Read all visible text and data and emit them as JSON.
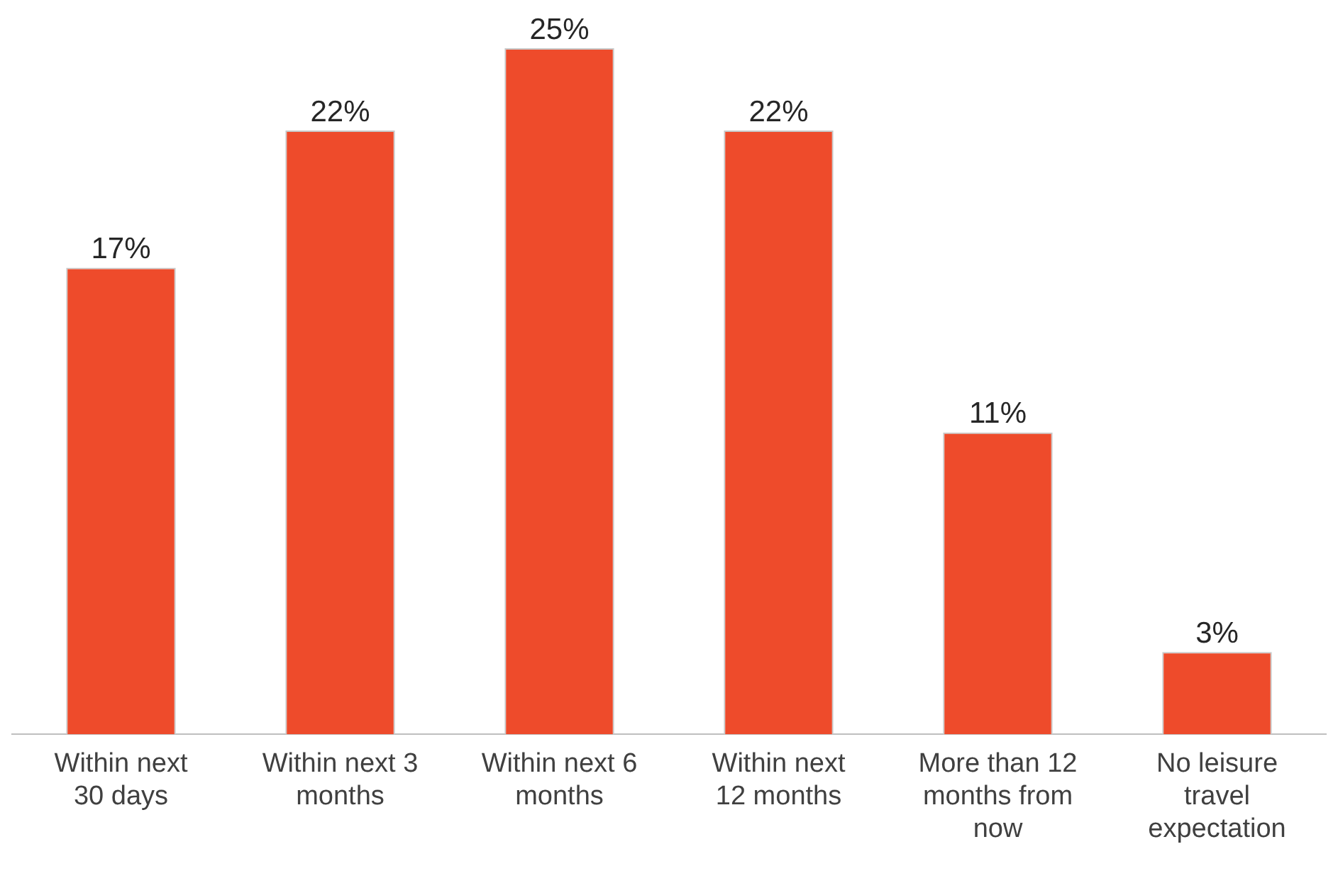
{
  "chart_data": {
    "type": "bar",
    "categories": [
      "Within next 30 days",
      "Within next 3 months",
      "Within next 6 months",
      "Within next 12 months",
      "More than 12 months from now",
      "No leisure travel expectation"
    ],
    "values": [
      17,
      22,
      25,
      22,
      11,
      3
    ],
    "value_labels": [
      "17%",
      "22%",
      "25%",
      "22%",
      "11%",
      "3%"
    ],
    "color": "#ee4b2b",
    "grid": false,
    "legend": false
  }
}
